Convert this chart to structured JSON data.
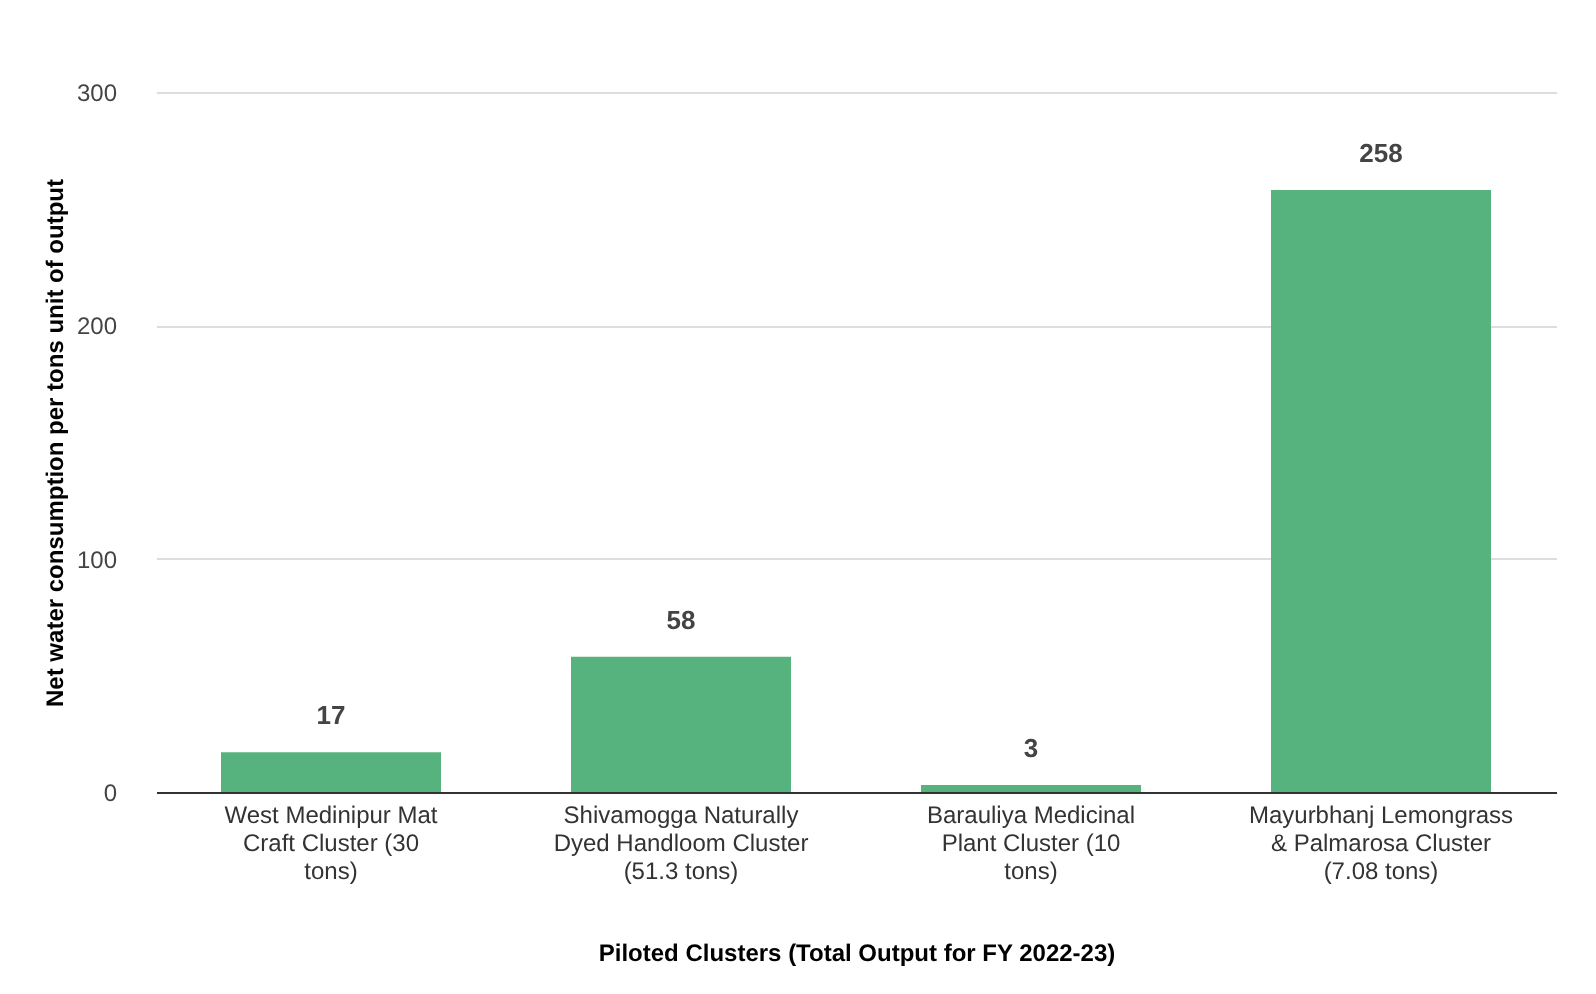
{
  "chart_data": {
    "type": "bar",
    "xlabel": "Piloted Clusters (Total Output for FY 2022-23)",
    "ylabel": "Net water consumption per tons unit of output",
    "categories": [
      "West Medinipur Mat Craft Cluster (30 tons)",
      "Shivamogga Naturally Dyed Handloom Cluster (51.3 tons)",
      "Barauliya Medicinal Plant Cluster (10 tons)",
      "Mayurbhanj Lemongrass & Palmarosa Cluster (7.08 tons)"
    ],
    "values": [
      17,
      58,
      3,
      258
    ],
    "color": "#57b37d",
    "ylim": [
      0,
      300
    ],
    "yticks": [
      0,
      100,
      200,
      300
    ],
    "grid": "y",
    "data_labels": true
  }
}
